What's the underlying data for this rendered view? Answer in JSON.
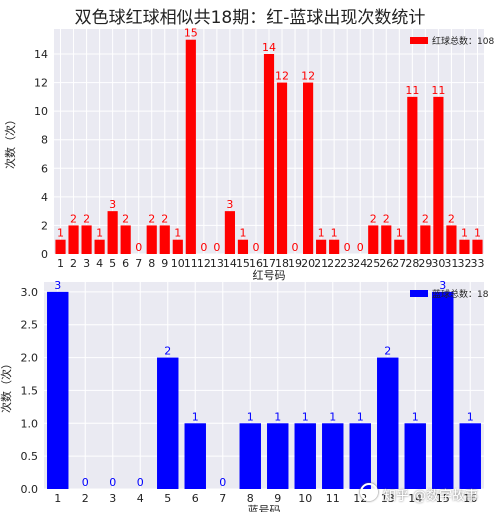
{
  "figure": {
    "title": "双色球红球相似共18期：红-蓝球出现次数统计",
    "watermark": "知乎 @数字故事"
  },
  "colors": {
    "plot_bg": "#eaeaf2",
    "grid": "#ffffff",
    "red": "#ff0000",
    "blue": "#0000ff"
  },
  "chart_data": [
    {
      "type": "bar",
      "categories": [
        "1",
        "2",
        "3",
        "4",
        "5",
        "6",
        "7",
        "8",
        "9",
        "10",
        "11",
        "12",
        "13",
        "14",
        "15",
        "16",
        "17",
        "18",
        "19",
        "20",
        "21",
        "22",
        "23",
        "24",
        "25",
        "26",
        "27",
        "28",
        "29",
        "30",
        "31",
        "32",
        "33"
      ],
      "series": [
        {
          "name": "红球总数：108",
          "values": [
            1,
            2,
            2,
            1,
            3,
            2,
            0,
            2,
            2,
            1,
            15,
            0,
            0,
            3,
            1,
            0,
            14,
            12,
            0,
            12,
            1,
            1,
            0,
            0,
            2,
            2,
            1,
            11,
            2,
            11,
            2,
            1,
            1
          ],
          "color": "#ff0000"
        }
      ],
      "xlabel": "红号码",
      "ylabel": "次数（次）",
      "ylim": [
        0,
        15.75
      ],
      "yticks": [
        0,
        2,
        4,
        6,
        8,
        10,
        12,
        14
      ],
      "grid": true,
      "legend": "top-right"
    },
    {
      "type": "bar",
      "categories": [
        "1",
        "2",
        "3",
        "4",
        "5",
        "6",
        "7",
        "8",
        "9",
        "10",
        "11",
        "12",
        "13",
        "14",
        "15",
        "16"
      ],
      "series": [
        {
          "name": "蓝球总数：18",
          "values": [
            3,
            0,
            0,
            0,
            2,
            1,
            0,
            1,
            1,
            1,
            1,
            1,
            2,
            1,
            3,
            1
          ],
          "color": "#0000ff"
        }
      ],
      "xlabel": "蓝号码",
      "ylabel": "次数（次）",
      "ylim": [
        0,
        3.15
      ],
      "yticks": [
        "0.0",
        "0.5",
        "1.0",
        "1.5",
        "2.0",
        "2.5",
        "3.0"
      ],
      "grid": true,
      "legend": "top-right"
    }
  ]
}
